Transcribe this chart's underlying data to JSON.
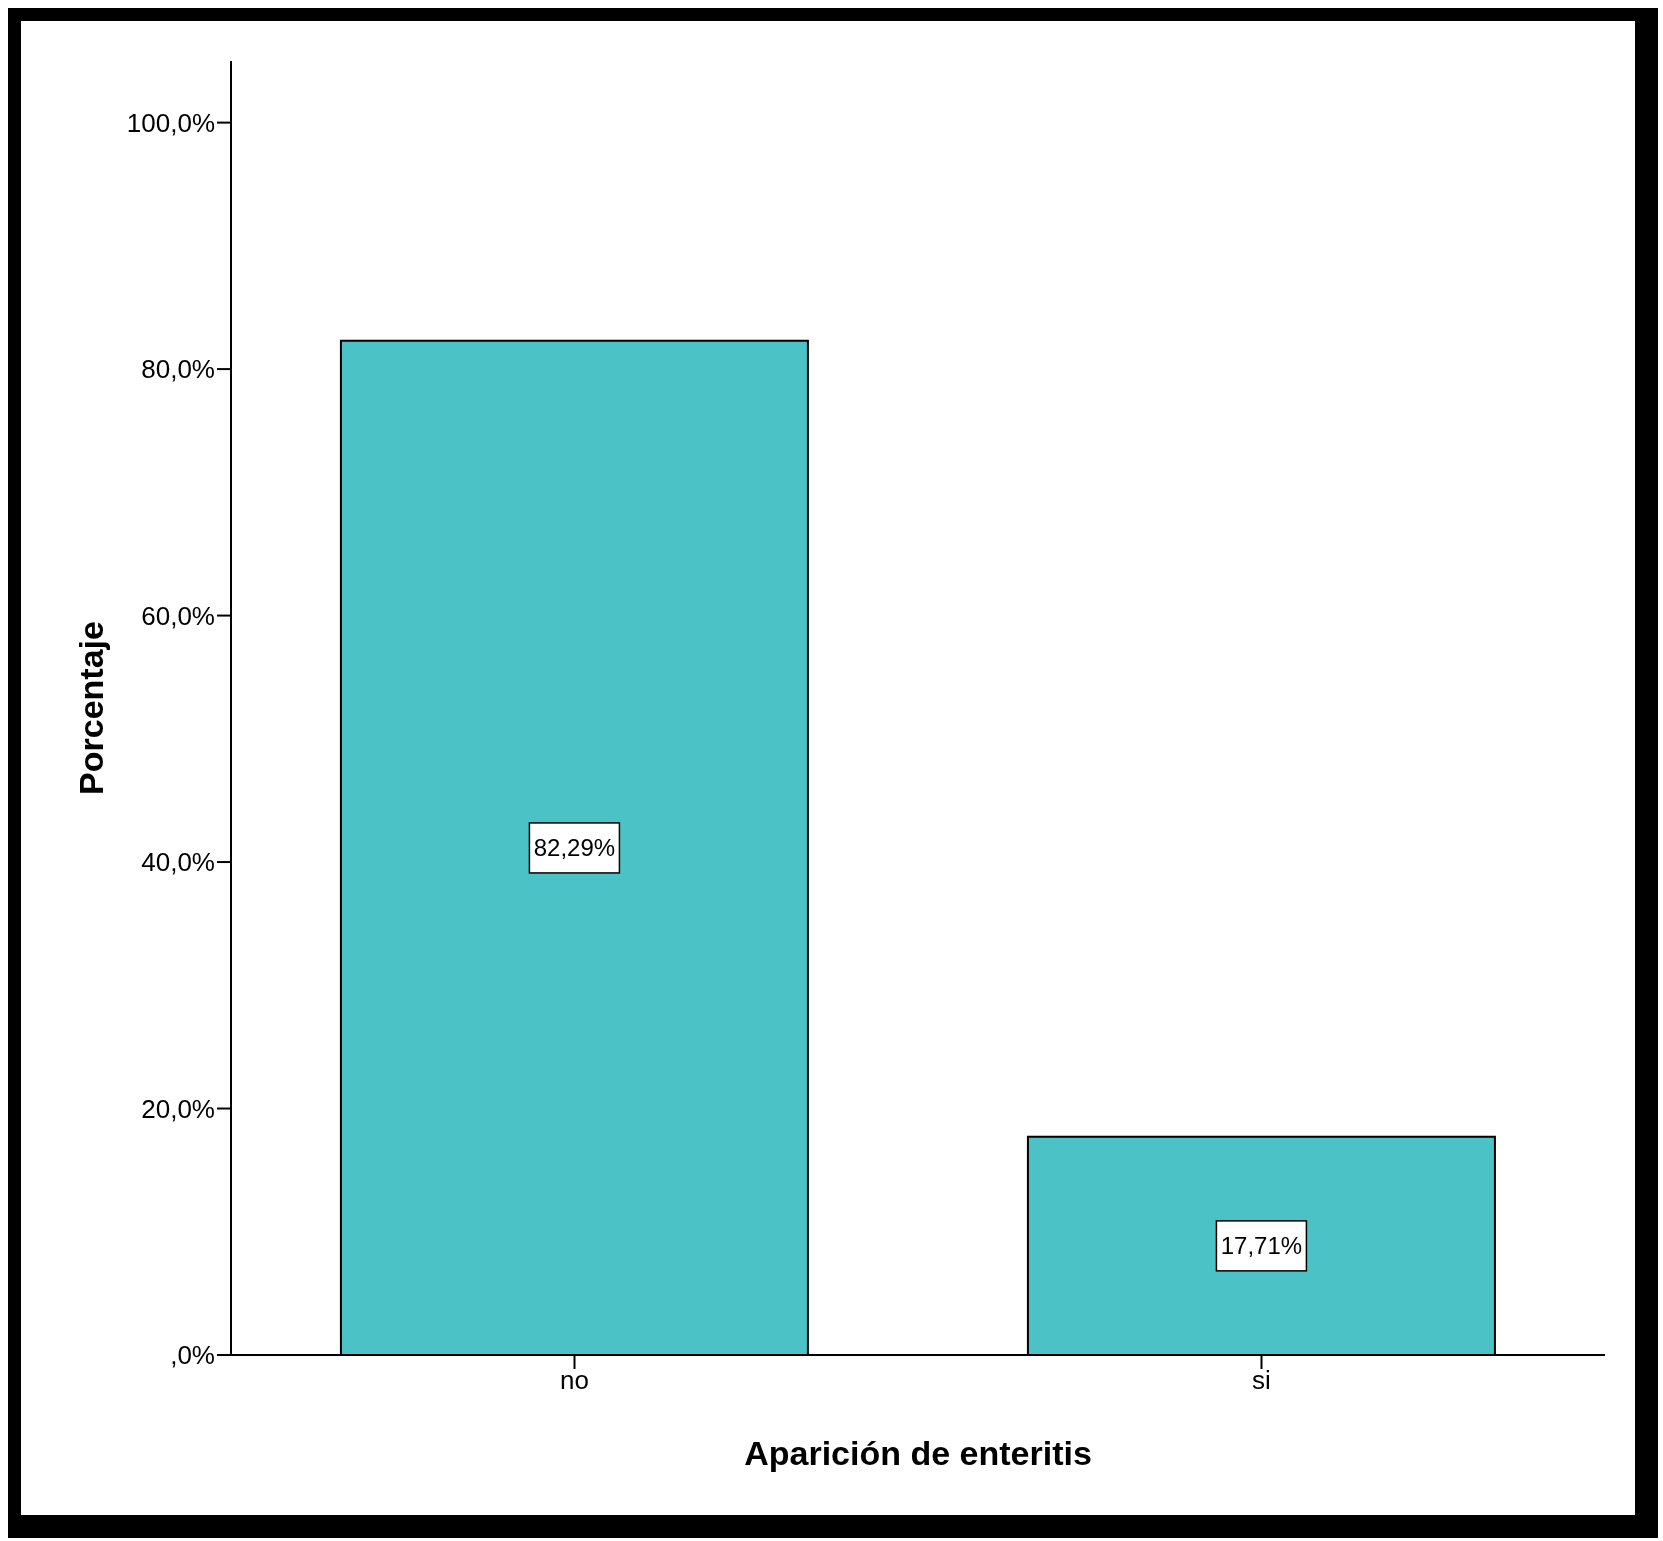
{
  "chart_data": {
    "type": "bar",
    "xlabel": "Aparición de enteritis",
    "ylabel": "Porcentaje",
    "categories": [
      "no",
      "si"
    ],
    "values": [
      82.29,
      17.71
    ],
    "value_labels": [
      "82,29%",
      "17,71%"
    ],
    "color": "#4bc2c5",
    "ylim": [
      0,
      105
    ],
    "yticks": [
      {
        "value": 0,
        "label": ",0%"
      },
      {
        "value": 20,
        "label": "20,0%"
      },
      {
        "value": 40,
        "label": "40,0%"
      },
      {
        "value": 60,
        "label": "60,0%"
      },
      {
        "value": 80,
        "label": "80,0%"
      },
      {
        "value": 100,
        "label": "100,0%"
      }
    ],
    "grid": false,
    "legend": false
  }
}
